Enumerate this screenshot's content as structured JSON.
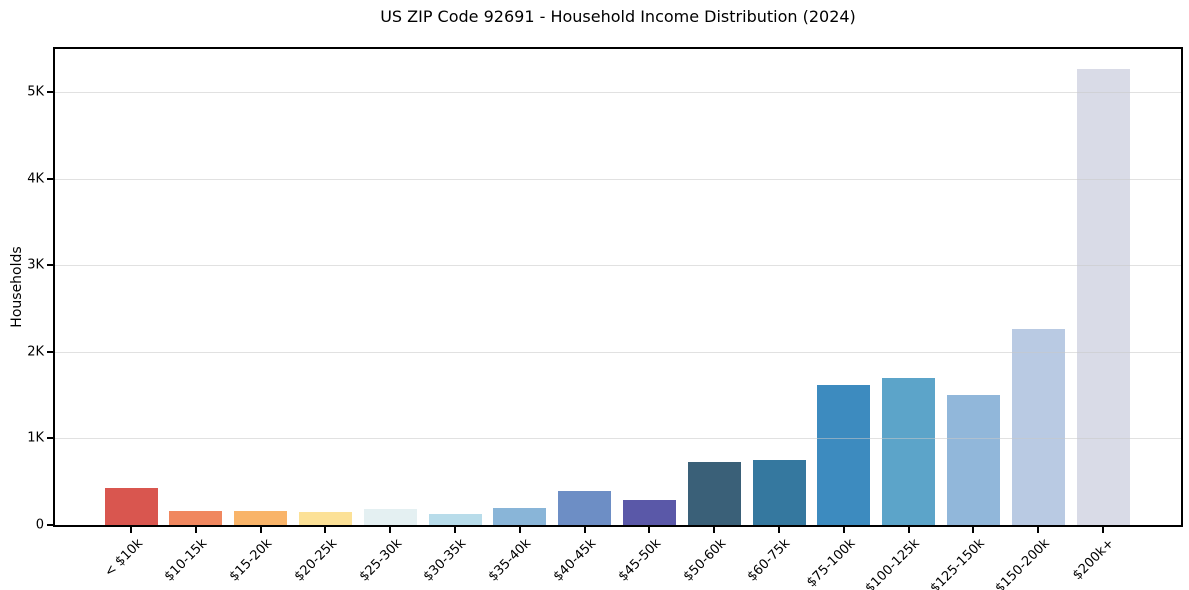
{
  "title": "US ZIP Code 92691 - Household Income Distribution (2024)",
  "chart_data": {
    "type": "bar",
    "title": "US ZIP Code 92691 - Household Income Distribution (2024)",
    "xlabel": "",
    "ylabel": "Households",
    "categories": [
      "< $10k",
      "$10-15k",
      "$15-20k",
      "$20-25k",
      "$25-30k",
      "$30-35k",
      "$35-40k",
      "$40-45k",
      "$45-50k",
      "$50-60k",
      "$60-75k",
      "$75-100k",
      "$100-125k",
      "$125-150k",
      "$150-200k",
      "$200k+"
    ],
    "values": [
      425,
      165,
      160,
      150,
      185,
      130,
      200,
      390,
      285,
      725,
      750,
      1620,
      1700,
      1500,
      2270,
      5270
    ],
    "bar_colors": [
      "#d9564f",
      "#f0875f",
      "#f9b469",
      "#fce197",
      "#e4f0f2",
      "#b8dcea",
      "#89b5d8",
      "#6d8ec5",
      "#5a58a8",
      "#3a6078",
      "#35789f",
      "#3d8bbf",
      "#5ca4c9",
      "#91b7da",
      "#b9cae3",
      "#d9dbe7"
    ],
    "ytick_labels": [
      "0",
      "1K",
      "2K",
      "3K",
      "4K",
      "5K"
    ],
    "ytick_values": [
      0,
      1000,
      2000,
      3000,
      4000,
      5000
    ],
    "ylim": [
      0,
      5500
    ],
    "grid": "horizontal",
    "legend": "none",
    "background_color": "#ffffff",
    "spine_color": "#000000"
  }
}
